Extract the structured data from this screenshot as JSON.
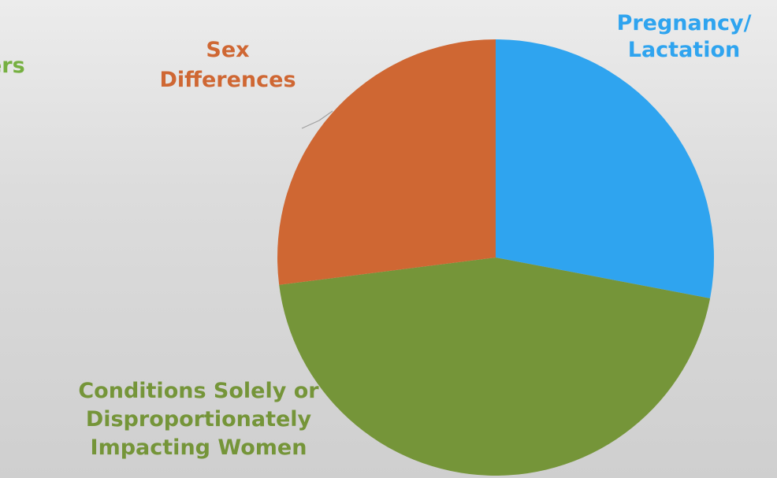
{
  "chart_data": {
    "type": "pie",
    "title": "",
    "start_angle_deg": 0,
    "direction": "clockwise",
    "slices": [
      {
        "label": "Pregnancy/ Lactation",
        "label_lines": [
          "Pregnancy/",
          "Lactation"
        ],
        "value": 28,
        "color": "#2fa4ef"
      },
      {
        "label": "Conditions Solely or Disproportionately Impacting Women",
        "label_lines": [
          "Conditions Solely or",
          "Disproportionately",
          "Impacting Women"
        ],
        "value": 45,
        "color": "#759539"
      },
      {
        "label": "Sex Differences",
        "label_lines": [
          "Sex",
          "Differences"
        ],
        "value": 27,
        "color": "#cf6733"
      }
    ],
    "cut_off_label": {
      "text": "ers",
      "color": "#76b041"
    }
  }
}
